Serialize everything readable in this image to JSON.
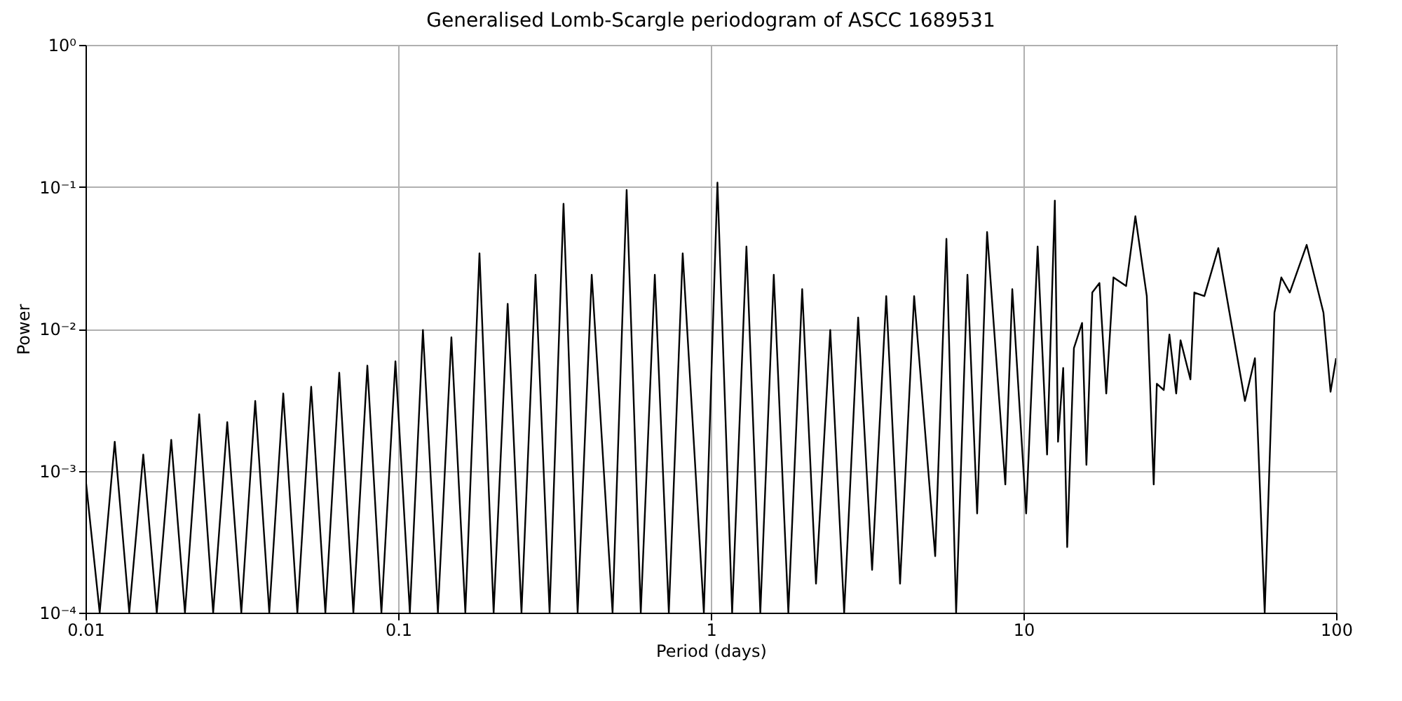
{
  "chart_data": {
    "type": "line",
    "title": "Generalised Lomb-Scargle periodogram of ASCC 1689531",
    "xlabel": "Period (days)",
    "ylabel": "Power",
    "log": "xy",
    "grid": true,
    "marker": "none",
    "line_style": "solid",
    "xlim": [
      0.01,
      100
    ],
    "xticks": [
      0.01,
      0.1,
      1,
      10,
      100
    ],
    "ylim": [
      0.0001,
      1
    ],
    "yticks": [
      {
        "value": 0.0001,
        "label": "10⁻⁴"
      },
      {
        "value": 0.001,
        "label": "10⁻³"
      },
      {
        "value": 0.01,
        "label": "10⁻²"
      },
      {
        "value": 0.1,
        "label": "10⁻¹"
      },
      {
        "value": 1,
        "label": "10⁰"
      }
    ],
    "x": [
      0.01,
      0.0111,
      0.0124,
      0.0138,
      0.0153,
      0.0169,
      0.0188,
      0.0208,
      0.0231,
      0.0256,
      0.0284,
      0.0315,
      0.0349,
      0.0387,
      0.0429,
      0.0476,
      0.0527,
      0.0585,
      0.0648,
      0.0719,
      0.0797,
      0.0884,
      0.098,
      0.109,
      0.12,
      0.134,
      0.148,
      0.164,
      0.182,
      0.202,
      0.224,
      0.248,
      0.275,
      0.305,
      0.338,
      0.375,
      0.416,
      0.485,
      0.538,
      0.597,
      0.662,
      0.734,
      0.813,
      0.95,
      1.05,
      1.17,
      1.3,
      1.44,
      1.59,
      1.77,
      1.96,
      2.17,
      2.41,
      2.67,
      2.96,
      3.28,
      3.64,
      4.03,
      4.47,
      5.22,
      5.67,
      6.09,
      6.62,
      7.11,
      7.65,
      8.75,
      9.21,
      10.2,
      11.1,
      11.9,
      12.6,
      12.9,
      13.4,
      13.8,
      14.5,
      15.4,
      15.9,
      16.6,
      17.5,
      18.4,
      19.4,
      21.3,
      22.8,
      24.8,
      26.1,
      26.7,
      28.1,
      29.3,
      30.8,
      31.8,
      34.2,
      35.2,
      37.9,
      42.0,
      45.6,
      51.1,
      55.0,
      59.1,
      63.5,
      66.8,
      71.1,
      80.5,
      91.1,
      96.0,
      100
    ],
    "series": [
      {
        "color": "#000000",
        "values": [
          0.00089,
          0.0001,
          0.0016,
          0.0001,
          0.0013,
          0.0001,
          0.00165,
          0.0001,
          0.0025,
          0.0001,
          0.0022,
          0.0001,
          0.0031,
          0.0001,
          0.0035,
          0.0001,
          0.0039,
          0.0001,
          0.0049,
          0.0001,
          0.0055,
          0.0001,
          0.0059,
          0.0001,
          0.0098,
          0.0001,
          0.0087,
          0.0001,
          0.034,
          0.0001,
          0.015,
          0.0001,
          0.024,
          0.0001,
          0.076,
          0.0001,
          0.024,
          0.0001,
          0.095,
          0.0001,
          0.024,
          0.0001,
          0.034,
          0.0001,
          0.107,
          0.0001,
          0.038,
          0.0001,
          0.024,
          0.0001,
          0.019,
          0.00016,
          0.0098,
          0.0001,
          0.012,
          0.0002,
          0.017,
          0.00016,
          0.017,
          0.00025,
          0.043,
          0.0001,
          0.024,
          0.0005,
          0.048,
          0.0008,
          0.019,
          0.0005,
          0.038,
          0.0013,
          0.08,
          0.0016,
          0.0053,
          0.00029,
          0.0073,
          0.011,
          0.0011,
          0.018,
          0.021,
          0.0035,
          0.023,
          0.02,
          0.062,
          0.017,
          0.0008,
          0.0041,
          0.0037,
          0.0091,
          0.0035,
          0.0083,
          0.0044,
          0.018,
          0.017,
          0.037,
          0.013,
          0.0031,
          0.0062,
          0.0001,
          0.013,
          0.023,
          0.018,
          0.039,
          0.013,
          0.0036,
          0.0062
        ]
      }
    ]
  }
}
